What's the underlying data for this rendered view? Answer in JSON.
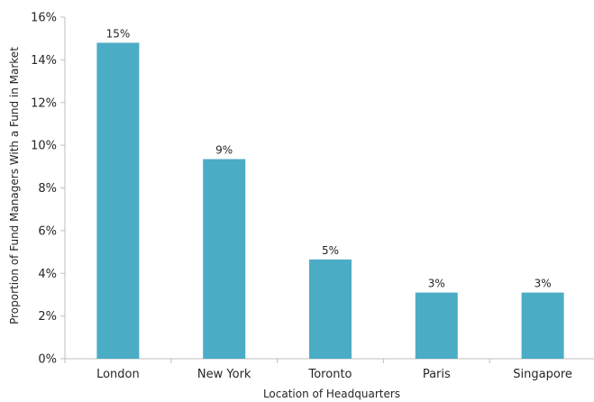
{
  "chart_data": {
    "type": "bar",
    "title": "",
    "xlabel": "Location of Headquarters",
    "ylabel": "Proportion of Fund Managers With a Fund in Market",
    "categories": [
      "London",
      "New York",
      "Toronto",
      "Paris",
      "Singapore"
    ],
    "values": [
      14.8,
      9.35,
      4.65,
      3.1,
      3.1
    ],
    "value_unit": "%",
    "data_labels": [
      "15%",
      "9%",
      "5%",
      "3%",
      "3%"
    ],
    "ylim": [
      0,
      16
    ],
    "yticks": [
      0,
      2,
      4,
      6,
      8,
      10,
      12,
      14,
      16
    ],
    "ytick_labels": [
      "0%",
      "2%",
      "4%",
      "6%",
      "8%",
      "10%",
      "12%",
      "14%",
      "16%"
    ],
    "grid": false,
    "legend": "none",
    "colors": {
      "bar": "#4BACC6",
      "axis": "#BFBFBF",
      "text": "#262626"
    }
  }
}
